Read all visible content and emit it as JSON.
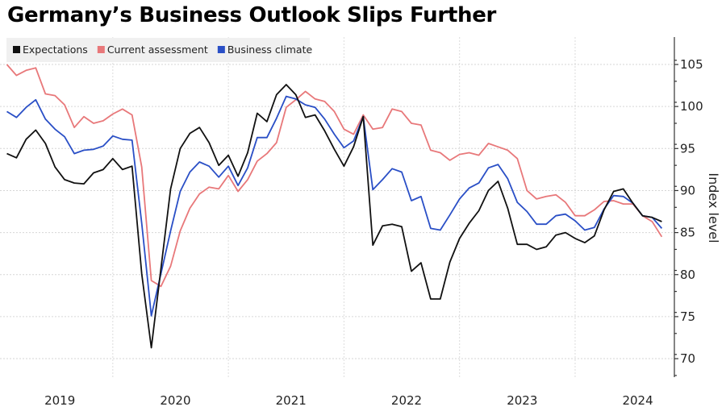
{
  "chart_data": {
    "type": "line",
    "title": "Germany’s Business Outlook Slips Further",
    "xlabel": "",
    "ylabel": "Index level",
    "ylim": [
      68,
      108
    ],
    "yticks": [
      70,
      75,
      80,
      85,
      90,
      95,
      100,
      105
    ],
    "grid": true,
    "legend_position": "top-left",
    "x_start": "2019-01",
    "x_end": "2024-09",
    "x_frequency": "monthly",
    "year_labels": [
      "2019",
      "2020",
      "2021",
      "2022",
      "2023",
      "2024"
    ],
    "series": [
      {
        "name": "Expectations",
        "color": "#111111",
        "values": [
          94.4,
          93.9,
          96.1,
          97.2,
          95.6,
          92.8,
          91.3,
          90.9,
          90.8,
          92.1,
          92.5,
          93.8,
          92.5,
          92.9,
          80.1,
          71.3,
          80.7,
          90.2,
          95.0,
          96.8,
          97.5,
          95.7,
          93.0,
          94.2,
          91.7,
          94.5,
          99.2,
          98.2,
          101.4,
          102.6,
          101.4,
          98.7,
          99.0,
          97.1,
          94.9,
          92.9,
          95.2,
          98.8,
          83.5,
          85.8,
          86.0,
          85.7,
          80.4,
          81.4,
          77.1,
          77.1,
          81.5,
          84.3,
          86.1,
          87.6,
          90.0,
          91.1,
          87.9,
          83.6,
          83.6,
          83.0,
          83.3,
          84.7,
          85.0,
          84.3,
          83.8,
          84.6,
          87.7,
          89.9,
          90.2,
          88.5,
          87.0,
          86.8,
          86.3
        ]
      },
      {
        "name": "Current assessment",
        "color": "#e8787a",
        "values": [
          105.0,
          103.7,
          104.3,
          104.6,
          101.5,
          101.3,
          100.2,
          97.5,
          98.8,
          98.0,
          98.3,
          99.1,
          99.7,
          99.0,
          92.8,
          79.3,
          78.6,
          81.0,
          85.2,
          87.9,
          89.6,
          90.4,
          90.2,
          91.8,
          89.9,
          91.3,
          93.5,
          94.4,
          95.7,
          99.9,
          100.8,
          101.8,
          100.9,
          100.6,
          99.4,
          97.3,
          96.7,
          99.0,
          97.3,
          97.5,
          99.7,
          99.4,
          98.0,
          97.8,
          94.8,
          94.5,
          93.6,
          94.3,
          94.5,
          94.2,
          95.6,
          95.2,
          94.8,
          93.8,
          90.0,
          89.0,
          89.3,
          89.5,
          88.6,
          87.0,
          87.0,
          87.7,
          88.7,
          88.8,
          88.4,
          88.4,
          87.0,
          86.3,
          84.5
        ]
      },
      {
        "name": "Business climate",
        "color": "#2a4fc6",
        "values": [
          99.4,
          98.7,
          99.9,
          100.8,
          98.5,
          97.3,
          96.4,
          94.4,
          94.8,
          94.9,
          95.3,
          96.5,
          96.1,
          96.0,
          86.1,
          75.1,
          80.1,
          85.2,
          89.9,
          92.2,
          93.4,
          92.9,
          91.6,
          92.9,
          90.6,
          92.7,
          96.3,
          96.3,
          98.6,
          101.2,
          100.9,
          100.2,
          99.9,
          98.5,
          96.7,
          95.1,
          95.9,
          98.8,
          90.1,
          91.3,
          92.6,
          92.2,
          88.8,
          89.3,
          85.5,
          85.3,
          87.1,
          89.0,
          90.3,
          90.9,
          92.7,
          93.1,
          91.4,
          88.6,
          87.5,
          86.0,
          86.0,
          87.0,
          87.2,
          86.4,
          85.3,
          85.6,
          87.8,
          89.4,
          89.3,
          88.5,
          87.0,
          86.8,
          85.5
        ]
      }
    ]
  }
}
